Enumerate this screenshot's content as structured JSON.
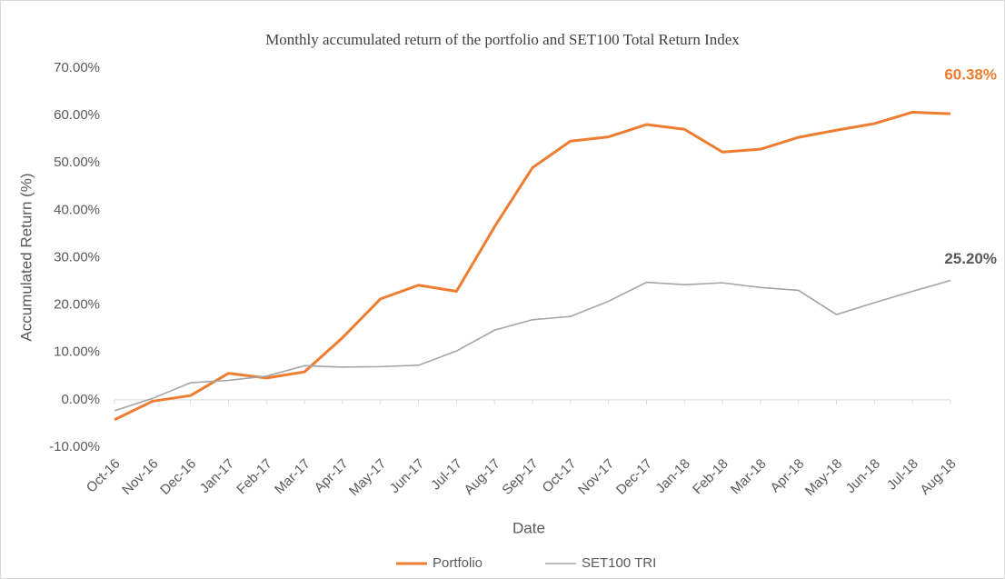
{
  "chart_data": {
    "type": "line",
    "title": "Monthly accumulated return of the portfolio and SET100 Total Return Index",
    "x_label": "Date",
    "y_label": "Accumulated Return (%)",
    "categories": [
      "Oct-16",
      "Nov-16",
      "Dec-16",
      "Jan-17",
      "Feb-17",
      "Mar-17",
      "Apr-17",
      "May-17",
      "Jun-17",
      "Jul-17",
      "Aug-17",
      "Sep-17",
      "Oct-17",
      "Nov-17",
      "Dec-17",
      "Jan-18",
      "Feb-18",
      "Mar-18",
      "Apr-18",
      "May-18",
      "Jun-18",
      "Jul-18",
      "Aug-18"
    ],
    "series": [
      {
        "name": "Portfolio",
        "color": "#ed7d31",
        "end_label": "60.38%",
        "values": [
          -4.2,
          -0.3,
          0.9,
          5.6,
          4.6,
          5.9,
          13.1,
          21.3,
          24.2,
          22.9,
          36.5,
          49,
          54.6,
          55.5,
          58.1,
          57.1,
          52.3,
          52.9,
          55.4,
          56.9,
          58.3,
          60.7,
          60.38
        ]
      },
      {
        "name": "SET100 TRI",
        "color": "#a5a5a5",
        "end_label": "25.20%",
        "values": [
          -2.3,
          0.3,
          3.6,
          4.1,
          5.0,
          7.2,
          6.9,
          7.0,
          7.3,
          10.3,
          14.7,
          16.9,
          17.6,
          20.8,
          24.8,
          24.3,
          24.7,
          23.7,
          23.1,
          18.0,
          20.5,
          22.9,
          25.2
        ]
      }
    ],
    "ylim": [
      -10,
      70
    ],
    "yticks": [
      {
        "value": -10,
        "label": "-10.00%"
      },
      {
        "value": 0,
        "label": "0.00%"
      },
      {
        "value": 10,
        "label": "10.00%"
      },
      {
        "value": 20,
        "label": "20.00%"
      },
      {
        "value": 30,
        "label": "30.00%"
      },
      {
        "value": 40,
        "label": "40.00%"
      },
      {
        "value": 50,
        "label": "50.00%"
      },
      {
        "value": 60,
        "label": "60.00%"
      },
      {
        "value": 70,
        "label": "70.00%"
      }
    ],
    "grid": false,
    "legend": "bottom"
  }
}
